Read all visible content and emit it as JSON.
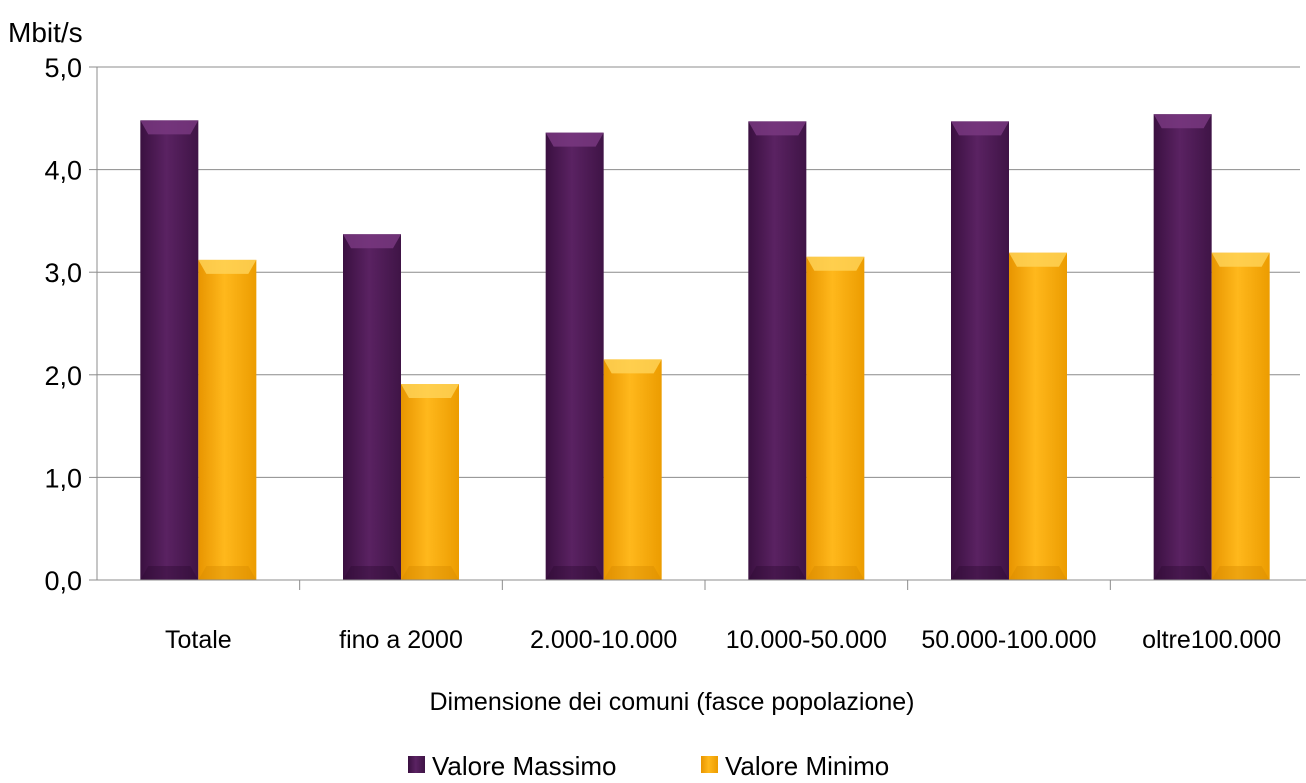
{
  "chart_data": {
    "type": "bar",
    "ylabel": "Mbit/s",
    "xlabel": "Dimensione dei comuni (fasce popolazione)",
    "categories": [
      "Totale",
      "fino a 2000",
      "2.000-10.000",
      "10.000-50.000",
      "50.000-100.000",
      "oltre100.000"
    ],
    "ylim": [
      0,
      5
    ],
    "yticks": [
      "0,0",
      "1,0",
      "2,0",
      "3,0",
      "4,0",
      "5,0"
    ],
    "grid": true,
    "legend_position": "bottom",
    "series": [
      {
        "name": "Valore Massimo",
        "color": "#4a1850",
        "values": [
          4.48,
          3.37,
          4.36,
          4.47,
          4.47,
          4.54
        ]
      },
      {
        "name": "Valore Minimo",
        "color": "#f5a800",
        "values": [
          3.12,
          1.91,
          2.15,
          3.15,
          3.19,
          3.19
        ]
      }
    ]
  }
}
